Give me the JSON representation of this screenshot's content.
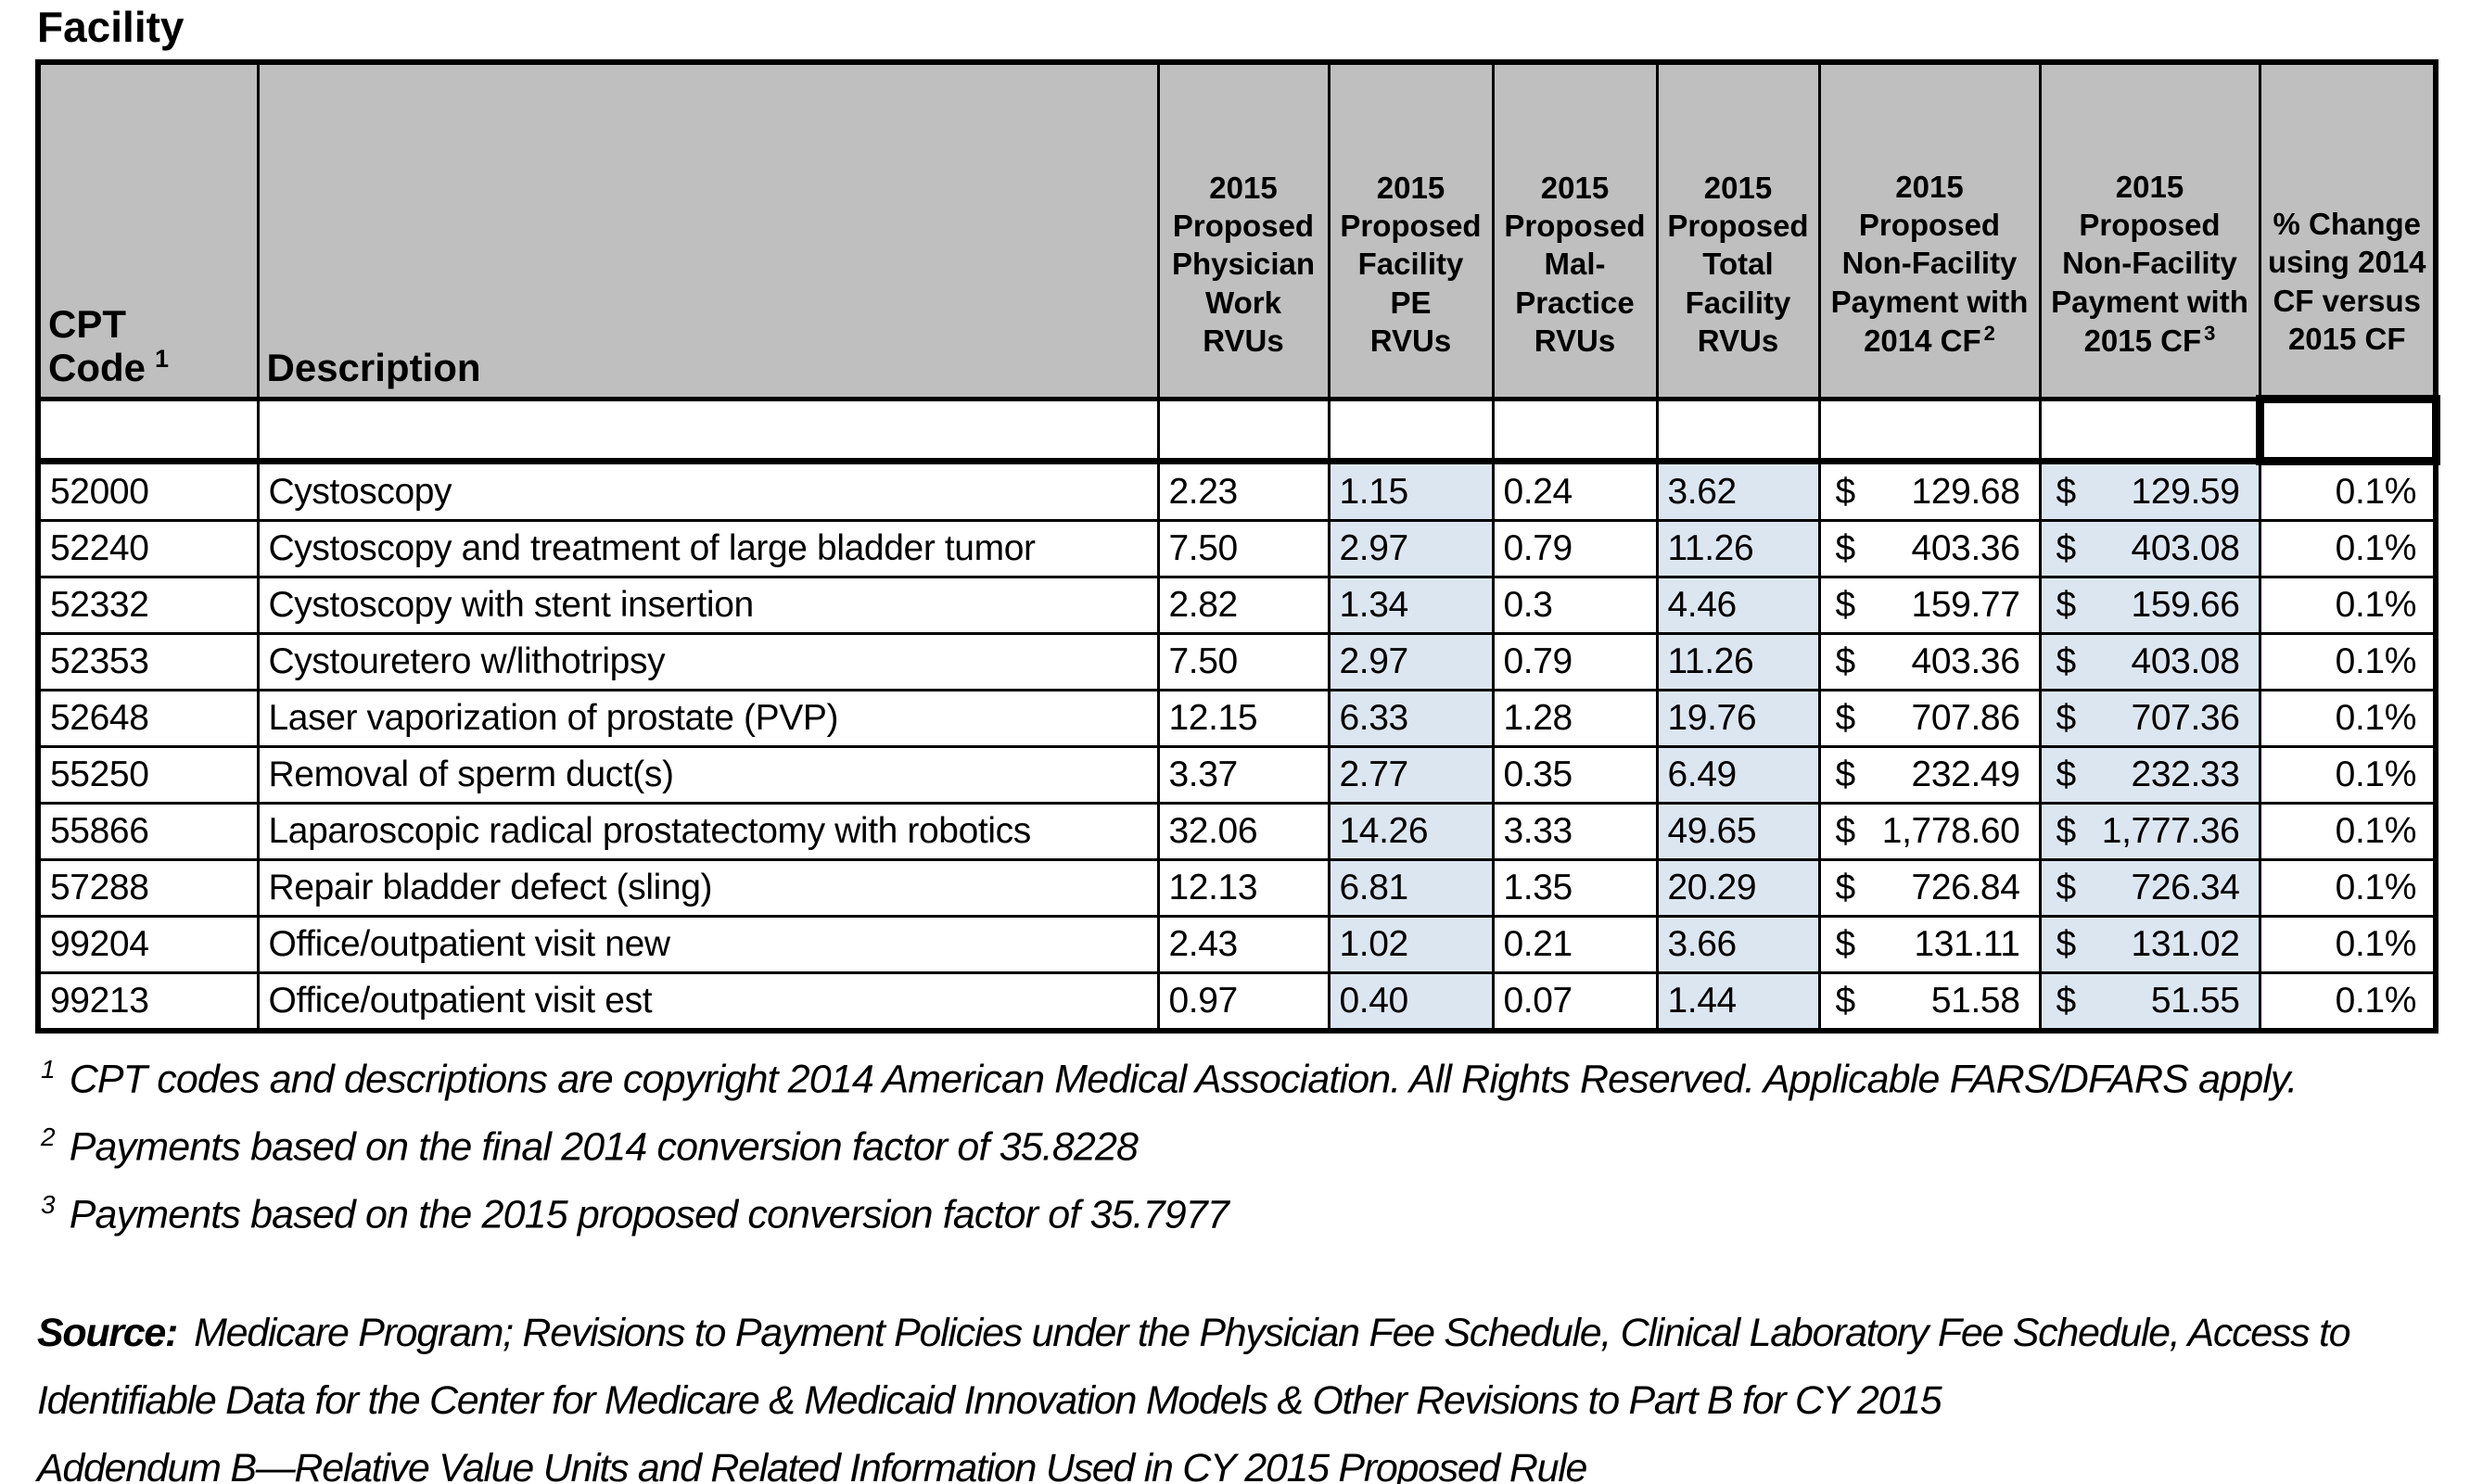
{
  "page": {
    "title": "Facility"
  },
  "colors": {
    "header_bg": "#bfbfbf",
    "shaded_cell_bg": "#dce6f1",
    "border": "#000000"
  },
  "table": {
    "currency_symbol": "$",
    "headers": [
      {
        "label": "CPT Code",
        "sup": "1"
      },
      {
        "label": "Description",
        "sup": ""
      },
      {
        "label": "2015\nProposed\nPhysician\nWork\nRVUs",
        "sup": ""
      },
      {
        "label": "2015\nProposed\nFacility\nPE\nRVUs",
        "sup": ""
      },
      {
        "label": "2015\nProposed\nMal-\nPractice\nRVUs",
        "sup": ""
      },
      {
        "label": "2015\nProposed\nTotal\nFacility\nRVUs",
        "sup": ""
      },
      {
        "label": "2015\nProposed\nNon-Facility\nPayment with\n2014 CF",
        "sup": "2"
      },
      {
        "label": "2015\nProposed\nNon-Facility\nPayment with\n2015 CF",
        "sup": "3"
      },
      {
        "label": "% Change\nusing 2014\nCF versus\n2015 CF",
        "sup": ""
      }
    ],
    "columns": [
      {
        "key": "code",
        "type": "text"
      },
      {
        "key": "description",
        "type": "text"
      },
      {
        "key": "work_rvus",
        "type": "num"
      },
      {
        "key": "facility_pe_rvus",
        "type": "num",
        "shaded": true
      },
      {
        "key": "malpractice_rvus",
        "type": "num"
      },
      {
        "key": "total_facility_rvus",
        "type": "num",
        "shaded": true
      },
      {
        "key": "payment_2014_cf",
        "type": "currency"
      },
      {
        "key": "payment_2015_cf",
        "type": "currency",
        "shaded": true
      },
      {
        "key": "pct_change",
        "type": "pct"
      }
    ],
    "rows": [
      {
        "code": "52000",
        "description": "Cystoscopy",
        "work_rvus": "2.23",
        "facility_pe_rvus": "1.15",
        "malpractice_rvus": "0.24",
        "total_facility_rvus": "3.62",
        "payment_2014_cf": "129.68",
        "payment_2015_cf": "129.59",
        "pct_change": "0.1%"
      },
      {
        "code": "52240",
        "description": "Cystoscopy and treatment of large bladder tumor",
        "work_rvus": "7.50",
        "facility_pe_rvus": "2.97",
        "malpractice_rvus": "0.79",
        "total_facility_rvus": "11.26",
        "payment_2014_cf": "403.36",
        "payment_2015_cf": "403.08",
        "pct_change": "0.1%"
      },
      {
        "code": "52332",
        "description": "Cystoscopy with stent insertion",
        "work_rvus": "2.82",
        "facility_pe_rvus": "1.34",
        "malpractice_rvus": "0.3",
        "total_facility_rvus": "4.46",
        "payment_2014_cf": "159.77",
        "payment_2015_cf": "159.66",
        "pct_change": "0.1%"
      },
      {
        "code": "52353",
        "description": "Cystouretero w/lithotripsy",
        "work_rvus": "7.50",
        "facility_pe_rvus": "2.97",
        "malpractice_rvus": "0.79",
        "total_facility_rvus": "11.26",
        "payment_2014_cf": "403.36",
        "payment_2015_cf": "403.08",
        "pct_change": "0.1%"
      },
      {
        "code": "52648",
        "description": "Laser vaporization of prostate (PVP)",
        "work_rvus": "12.15",
        "facility_pe_rvus": "6.33",
        "malpractice_rvus": "1.28",
        "total_facility_rvus": "19.76",
        "payment_2014_cf": "707.86",
        "payment_2015_cf": "707.36",
        "pct_change": "0.1%"
      },
      {
        "code": "55250",
        "description": "Removal of sperm duct(s)",
        "work_rvus": "3.37",
        "facility_pe_rvus": "2.77",
        "malpractice_rvus": "0.35",
        "total_facility_rvus": "6.49",
        "payment_2014_cf": "232.49",
        "payment_2015_cf": "232.33",
        "pct_change": "0.1%"
      },
      {
        "code": "55866",
        "description": "Laparoscopic radical prostatectomy with robotics",
        "work_rvus": "32.06",
        "facility_pe_rvus": "14.26",
        "malpractice_rvus": "3.33",
        "total_facility_rvus": "49.65",
        "payment_2014_cf": "1,778.60",
        "payment_2015_cf": "1,777.36",
        "pct_change": "0.1%"
      },
      {
        "code": "57288",
        "description": "Repair bladder defect (sling)",
        "work_rvus": "12.13",
        "facility_pe_rvus": "6.81",
        "malpractice_rvus": "1.35",
        "total_facility_rvus": "20.29",
        "payment_2014_cf": "726.84",
        "payment_2015_cf": "726.34",
        "pct_change": "0.1%"
      },
      {
        "code": "99204",
        "description": "Office/outpatient visit new",
        "work_rvus": "2.43",
        "facility_pe_rvus": "1.02",
        "malpractice_rvus": "0.21",
        "total_facility_rvus": "3.66",
        "payment_2014_cf": "131.11",
        "payment_2015_cf": "131.02",
        "pct_change": "0.1%"
      },
      {
        "code": "99213",
        "description": "Office/outpatient visit est",
        "work_rvus": "0.97",
        "facility_pe_rvus": "0.40",
        "malpractice_rvus": "0.07",
        "total_facility_rvus": "1.44",
        "payment_2014_cf": "51.58",
        "payment_2015_cf": "51.55",
        "pct_change": "0.1%"
      }
    ]
  },
  "footnotes": [
    {
      "marker": "1",
      "text": "CPT codes and descriptions are copyright 2014 American Medical Association. All Rights Reserved. Applicable FARS/DFARS apply."
    },
    {
      "marker": "2",
      "text": "Payments based on the final 2014 conversion factor of 35.8228"
    },
    {
      "marker": "3",
      "text": "Payments based on the 2015 proposed conversion factor of 35.7977"
    }
  ],
  "source": {
    "label": "Source:",
    "text": "Medicare Program; Revisions to Payment Policies under the Physician Fee Schedule, Clinical Laboratory Fee Schedule, Access to Identifiable Data for the Center for Medicare & Medicaid Innovation Models & Other Revisions to Part B for CY 2015",
    "addendum": "Addendum B—Relative Value Units and Related Information Used in CY 2015 Proposed Rule"
  }
}
